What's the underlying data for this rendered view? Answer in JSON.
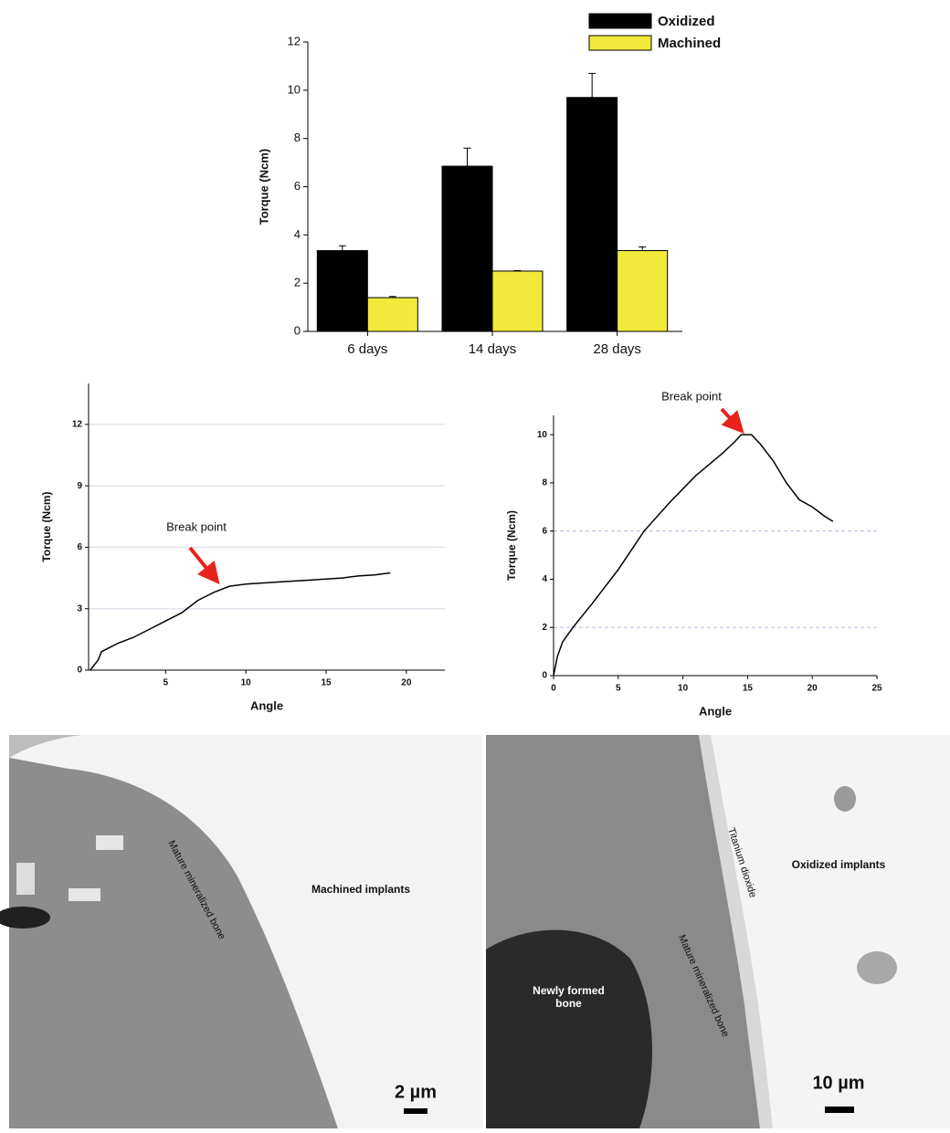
{
  "chart_data": [
    {
      "type": "bar",
      "ylabel": "Torque (Ncm)",
      "categories": [
        "6 days",
        "14 days",
        "28 days"
      ],
      "series": [
        {
          "name": "Oxidized",
          "color": "#000000",
          "values": [
            3.35,
            6.85,
            9.7
          ],
          "errors": [
            0.2,
            0.75,
            1.0
          ]
        },
        {
          "name": "Machined",
          "color": "#f2ea3a",
          "values": [
            1.4,
            2.5,
            3.35
          ],
          "errors": [
            0.05,
            0.02,
            0.15
          ]
        }
      ],
      "ylim": [
        0,
        12
      ],
      "yticks": [
        0,
        2,
        4,
        6,
        8,
        10,
        12
      ],
      "legend": "top-right"
    },
    {
      "type": "line",
      "xlabel": "Angle",
      "ylabel": "Torque (Ncm)",
      "annotation": "Break point",
      "x": [
        0.3,
        0.8,
        1,
        1.5,
        2,
        3,
        4,
        5,
        6,
        7,
        8,
        9,
        10,
        12,
        14,
        16,
        17,
        18,
        19
      ],
      "series": [
        {
          "color": "#000000",
          "values": [
            0,
            0.5,
            0.9,
            1.1,
            1.3,
            1.6,
            2.0,
            2.4,
            2.8,
            3.4,
            3.8,
            4.1,
            4.2,
            4.3,
            4.4,
            4.5,
            4.6,
            4.65,
            4.75
          ]
        }
      ],
      "xlim": [
        0.2,
        22.4
      ],
      "xticks": [
        5,
        10,
        15,
        20
      ],
      "ylim": [
        0,
        14
      ],
      "yticks": [
        0,
        3,
        6,
        9,
        12
      ],
      "gridlines": [
        3,
        6,
        9,
        12
      ],
      "grid_color": "#d8d8e8"
    },
    {
      "type": "line",
      "xlabel": "Angle",
      "ylabel": "Torque (Ncm)",
      "annotation": "Break point",
      "x": [
        0,
        0.3,
        0.7,
        1.5,
        3,
        5,
        7,
        9,
        11,
        13,
        14,
        14.5,
        15.3,
        16,
        17,
        18,
        19,
        20,
        21,
        21.6
      ],
      "series": [
        {
          "color": "#000000",
          "values": [
            0,
            0.8,
            1.4,
            2.0,
            3.0,
            4.4,
            6.0,
            7.2,
            8.3,
            9.2,
            9.7,
            10,
            10,
            9.6,
            8.9,
            8.0,
            7.3,
            7.0,
            6.6,
            6.4
          ]
        }
      ],
      "xlim": [
        0,
        25
      ],
      "xticks": [
        0,
        5,
        10,
        15,
        20,
        25
      ],
      "ylim": [
        0,
        10.8
      ],
      "yticks": [
        0,
        2,
        4,
        6,
        8,
        10
      ],
      "gridlines": [
        2,
        6
      ],
      "grid_color": "#b8b8e0"
    }
  ],
  "micrographs": [
    {
      "labels": [
        "Machined implants",
        "Mature mineralized bone"
      ],
      "scale_bar": "2 µm"
    },
    {
      "labels": [
        "Oxidized implants",
        "Titanium dioxide",
        "Mature mineralized bone",
        "Newly formed bone"
      ],
      "scale_bar": "10 µm"
    }
  ]
}
